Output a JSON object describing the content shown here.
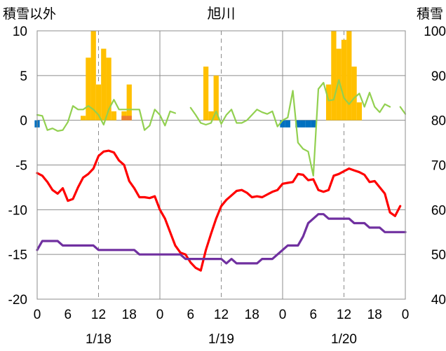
{
  "chart_data": {
    "type": "bar+line",
    "title": "旭川",
    "left_axis": {
      "label": "積雪以外",
      "range": [
        -20,
        10
      ],
      "ticks": [
        "10",
        "5",
        "0",
        "-5",
        "-10",
        "-15",
        "-20"
      ]
    },
    "right_axis": {
      "label": "積雪",
      "range": [
        40,
        100
      ],
      "ticks": [
        "100",
        "90",
        "80",
        "70",
        "60",
        "50",
        "40"
      ]
    },
    "x_axis": {
      "range_hours": [
        0,
        72
      ],
      "tick_labels": [
        "0",
        "6",
        "12",
        "18",
        "0",
        "6",
        "12",
        "18",
        "0",
        "6",
        "12",
        "18",
        "0"
      ],
      "day_labels": [
        "1/18",
        "1/19",
        "1/20"
      ]
    },
    "grid": {
      "horizontal": "solid-gray",
      "day_boundaries": "solid-gray",
      "noon": "dashed"
    },
    "colors": {
      "precip": "#FFC000",
      "negative": "#0070C0",
      "small_bar": "#ED7D31",
      "temp": "#FF0000",
      "wind": "#92D050",
      "snow_depth": "#7030A0"
    },
    "bars_precip": [
      {
        "x": 9,
        "y": 0.5
      },
      {
        "x": 10,
        "y": 7
      },
      {
        "x": 11,
        "y": 10
      },
      {
        "x": 12,
        "y": 4
      },
      {
        "x": 13,
        "y": 8
      },
      {
        "x": 14,
        "y": 7
      },
      {
        "x": 15,
        "y": 1
      },
      {
        "x": 17,
        "y": 1
      },
      {
        "x": 18,
        "y": 4
      },
      {
        "x": 33,
        "y": 6
      },
      {
        "x": 34,
        "y": 1
      },
      {
        "x": 35,
        "y": 5
      },
      {
        "x": 57,
        "y": 4
      },
      {
        "x": 58,
        "y": 10
      },
      {
        "x": 59,
        "y": 8
      },
      {
        "x": 60,
        "y": 9
      },
      {
        "x": 61,
        "y": 10
      },
      {
        "x": 62,
        "y": 6
      },
      {
        "x": 63,
        "y": 2
      }
    ],
    "bars_small": [
      {
        "x": 17,
        "y": 0.5
      },
      {
        "x": 18,
        "y": 0.5
      }
    ],
    "bars_negative": [
      {
        "x": 0,
        "y": -0.8
      },
      {
        "x": 48,
        "y": -0.8
      },
      {
        "x": 49,
        "y": -0.8
      },
      {
        "x": 51,
        "y": -0.8
      },
      {
        "x": 52,
        "y": -0.8
      },
      {
        "x": 53,
        "y": -0.8
      },
      {
        "x": 54,
        "y": -0.8
      }
    ],
    "series": [
      {
        "key": "temp",
        "axis": "left",
        "points": [
          [
            0,
            -5.9
          ],
          [
            1,
            -6.2
          ],
          [
            2,
            -6.9
          ],
          [
            3,
            -7.8
          ],
          [
            4,
            -8.2
          ],
          [
            5,
            -7.6
          ],
          [
            6,
            -9.0
          ],
          [
            7,
            -8.8
          ],
          [
            8,
            -7.5
          ],
          [
            9,
            -6.4
          ],
          [
            10,
            -6.0
          ],
          [
            11,
            -5.4
          ],
          [
            12,
            -4.0
          ],
          [
            13,
            -3.5
          ],
          [
            14,
            -3.4
          ],
          [
            15,
            -3.6
          ],
          [
            16,
            -4.5
          ],
          [
            17,
            -5.0
          ],
          [
            18,
            -6.8
          ],
          [
            19,
            -7.6
          ],
          [
            20,
            -8.6
          ],
          [
            21,
            -8.6
          ],
          [
            22,
            -8.7
          ],
          [
            23,
            -8.5
          ],
          [
            24,
            -10.0
          ],
          [
            25,
            -11.0
          ],
          [
            26,
            -12.5
          ],
          [
            27,
            -14.0
          ],
          [
            28,
            -14.8
          ],
          [
            29,
            -15.0
          ],
          [
            30,
            -15.9
          ],
          [
            31,
            -16.5
          ],
          [
            32,
            -16.8
          ],
          [
            33,
            -14.5
          ],
          [
            34,
            -12.7
          ],
          [
            35,
            -11.0
          ],
          [
            36,
            -9.6
          ],
          [
            37,
            -8.9
          ],
          [
            38,
            -8.4
          ],
          [
            39,
            -7.9
          ],
          [
            40,
            -7.8
          ],
          [
            41,
            -8.1
          ],
          [
            42,
            -8.6
          ],
          [
            43,
            -8.5
          ],
          [
            44,
            -8.6
          ],
          [
            45,
            -8.3
          ],
          [
            46,
            -8.0
          ],
          [
            47,
            -7.8
          ],
          [
            48,
            -7.1
          ],
          [
            49,
            -7.0
          ],
          [
            50,
            -6.9
          ],
          [
            51,
            -6.0
          ],
          [
            52,
            -6.1
          ],
          [
            53,
            -6.7
          ],
          [
            54,
            -6.6
          ],
          [
            55,
            -7.8
          ],
          [
            56,
            -8.0
          ],
          [
            57,
            -7.8
          ],
          [
            58,
            -6.2
          ],
          [
            59,
            -6.0
          ],
          [
            60,
            -5.7
          ],
          [
            61,
            -5.4
          ],
          [
            62,
            -5.6
          ],
          [
            63,
            -5.8
          ],
          [
            64,
            -6.1
          ],
          [
            65,
            -6.9
          ],
          [
            66,
            -6.8
          ],
          [
            67,
            -7.5
          ],
          [
            68,
            -8.2
          ],
          [
            69,
            -10.3
          ],
          [
            70,
            -10.7
          ],
          [
            71,
            -9.6
          ]
        ]
      },
      {
        "key": "wind",
        "axis": "left",
        "segments": [
          [
            [
              0,
              0.6
            ],
            [
              1,
              0.5
            ],
            [
              2,
              -1.1
            ],
            [
              3,
              -0.9
            ],
            [
              4,
              -1.2
            ],
            [
              5,
              -1.1
            ],
            [
              6,
              -0.2
            ],
            [
              7,
              1.6
            ],
            [
              8,
              1.2
            ],
            [
              9,
              1.2
            ],
            [
              10,
              1.6
            ],
            [
              11,
              1.2
            ],
            [
              12,
              0.6
            ],
            [
              13,
              -0.5
            ],
            [
              14,
              1.2
            ],
            [
              15,
              2.3
            ],
            [
              16,
              1.2
            ],
            [
              17,
              1.2
            ],
            [
              18,
              1.2
            ],
            [
              19,
              1.2
            ],
            [
              20,
              1.2
            ],
            [
              21,
              -1.1
            ],
            [
              22,
              -0.6
            ],
            [
              23,
              1.2
            ],
            [
              24,
              0.6
            ],
            [
              25,
              -0.6
            ],
            [
              26,
              1.0
            ],
            [
              27,
              0.8
            ]
          ],
          [
            [
              30,
              1.4
            ],
            [
              31,
              0.6
            ],
            [
              32,
              -0.3
            ],
            [
              33,
              -0.5
            ],
            [
              34,
              -0.3
            ],
            [
              35,
              1.0
            ],
            [
              36,
              -0.4
            ],
            [
              37,
              0.6
            ],
            [
              38,
              1.2
            ],
            [
              39,
              -0.3
            ],
            [
              40,
              -0.3
            ],
            [
              41,
              0.0
            ],
            [
              42,
              0.6
            ],
            [
              43,
              1.2
            ],
            [
              44,
              0.9
            ],
            [
              45,
              0.7
            ],
            [
              46,
              1.0
            ],
            [
              47,
              -0.7
            ],
            [
              48,
              0.0
            ],
            [
              49,
              0.3
            ],
            [
              50,
              3.3
            ],
            [
              51,
              -2.5
            ],
            [
              52,
              -3.2
            ],
            [
              53,
              -3.5
            ],
            [
              54,
              -6.2
            ],
            [
              55,
              3.5
            ],
            [
              56,
              4.2
            ],
            [
              57,
              2.2
            ],
            [
              58,
              2.3
            ],
            [
              59,
              4.5
            ],
            [
              60,
              2.5
            ],
            [
              61,
              1.8
            ],
            [
              62,
              2.5
            ],
            [
              63,
              3.0
            ],
            [
              64,
              1.5
            ],
            [
              65,
              3.1
            ],
            [
              66,
              1.5
            ],
            [
              67,
              0.9
            ],
            [
              68,
              1.8
            ],
            [
              69,
              1.5
            ]
          ],
          [
            [
              71,
              1.5
            ],
            [
              72,
              0.7
            ]
          ]
        ]
      },
      {
        "key": "snow_depth",
        "axis": "right",
        "points": [
          [
            0,
            51
          ],
          [
            1,
            53
          ],
          [
            2,
            53
          ],
          [
            3,
            53
          ],
          [
            4,
            53
          ],
          [
            5,
            52
          ],
          [
            6,
            52
          ],
          [
            7,
            52
          ],
          [
            8,
            52
          ],
          [
            9,
            52
          ],
          [
            10,
            52
          ],
          [
            11,
            52
          ],
          [
            12,
            51
          ],
          [
            13,
            51
          ],
          [
            14,
            51
          ],
          [
            15,
            51
          ],
          [
            16,
            51
          ],
          [
            17,
            51
          ],
          [
            18,
            51
          ],
          [
            19,
            51
          ],
          [
            20,
            50
          ],
          [
            21,
            50
          ],
          [
            22,
            50
          ],
          [
            23,
            50
          ],
          [
            24,
            50
          ],
          [
            25,
            50
          ],
          [
            26,
            50
          ],
          [
            27,
            50
          ],
          [
            28,
            50
          ],
          [
            29,
            49
          ],
          [
            30,
            49
          ],
          [
            31,
            49
          ],
          [
            32,
            49
          ],
          [
            33,
            49
          ],
          [
            34,
            49
          ],
          [
            35,
            49
          ],
          [
            36,
            49
          ],
          [
            37,
            48
          ],
          [
            38,
            49
          ],
          [
            39,
            48
          ],
          [
            40,
            48
          ],
          [
            41,
            48
          ],
          [
            42,
            48
          ],
          [
            43,
            48
          ],
          [
            44,
            49
          ],
          [
            45,
            49
          ],
          [
            46,
            49
          ],
          [
            47,
            50
          ],
          [
            48,
            51
          ],
          [
            49,
            52
          ],
          [
            50,
            52
          ],
          [
            51,
            52
          ],
          [
            52,
            54
          ],
          [
            53,
            57
          ],
          [
            54,
            58
          ],
          [
            55,
            59
          ],
          [
            56,
            59
          ],
          [
            57,
            58
          ],
          [
            58,
            58
          ],
          [
            59,
            58
          ],
          [
            60,
            58
          ],
          [
            61,
            58
          ],
          [
            62,
            57
          ],
          [
            63,
            57
          ],
          [
            64,
            57
          ],
          [
            65,
            56
          ],
          [
            66,
            56
          ],
          [
            67,
            56
          ],
          [
            68,
            55
          ],
          [
            69,
            55
          ],
          [
            70,
            55
          ],
          [
            71,
            55
          ],
          [
            72,
            55
          ]
        ]
      }
    ]
  }
}
